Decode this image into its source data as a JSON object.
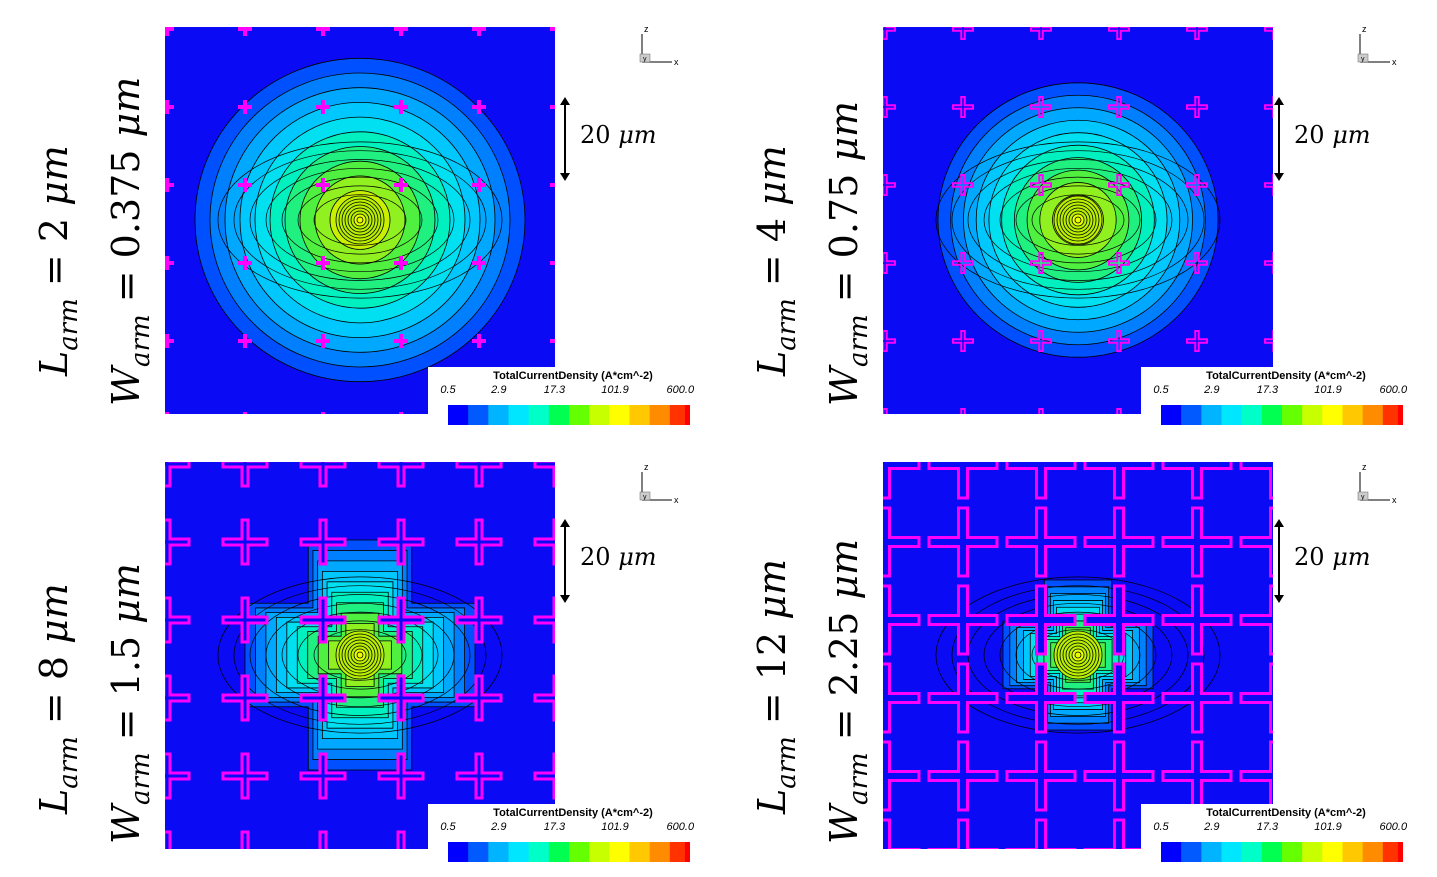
{
  "colorbar": {
    "title": "TotalCurrentDensity (A*cm^-2)",
    "ticks": [
      "0.5",
      "2.9",
      "17.3",
      "101.9",
      "600.0"
    ],
    "colors": [
      "#0000ff",
      "#005aff",
      "#00b4ff",
      "#00e6ff",
      "#00ffc8",
      "#00ff50",
      "#64ff00",
      "#c8ff00",
      "#ffff00",
      "#ffc800",
      "#ff8c00",
      "#ff3200",
      "#ff0000"
    ]
  },
  "scale_bar": {
    "value": "20",
    "unit": "μm"
  },
  "axes": {
    "vertical": "z",
    "horizontal": "x",
    "center": "y"
  },
  "panels": [
    {
      "id": "panel-1",
      "l_sym": "L",
      "l_sub": "arm",
      "l_value": "2",
      "w_sym": "W",
      "w_sub": "arm",
      "w_value": "0.375",
      "unit": "μm",
      "cross_size": "tiny"
    },
    {
      "id": "panel-2",
      "l_sym": "L",
      "l_sub": "arm",
      "l_value": "4",
      "w_sym": "W",
      "w_sub": "arm",
      "w_value": "0.75",
      "unit": "μm",
      "cross_size": "small"
    },
    {
      "id": "panel-3",
      "l_sym": "L",
      "l_sub": "arm",
      "l_value": "8",
      "w_sym": "W",
      "w_sub": "arm",
      "w_value": "1.5",
      "unit": "μm",
      "cross_size": "medium"
    },
    {
      "id": "panel-4",
      "l_sym": "L",
      "l_sub": "arm",
      "l_value": "12",
      "w_sym": "W",
      "w_sub": "arm",
      "w_value": "2.25",
      "unit": "μm",
      "cross_size": "large"
    }
  ],
  "field_colors": {
    "background": "#0a0af5",
    "cross": "#ff00ff",
    "contour": "#000000"
  }
}
